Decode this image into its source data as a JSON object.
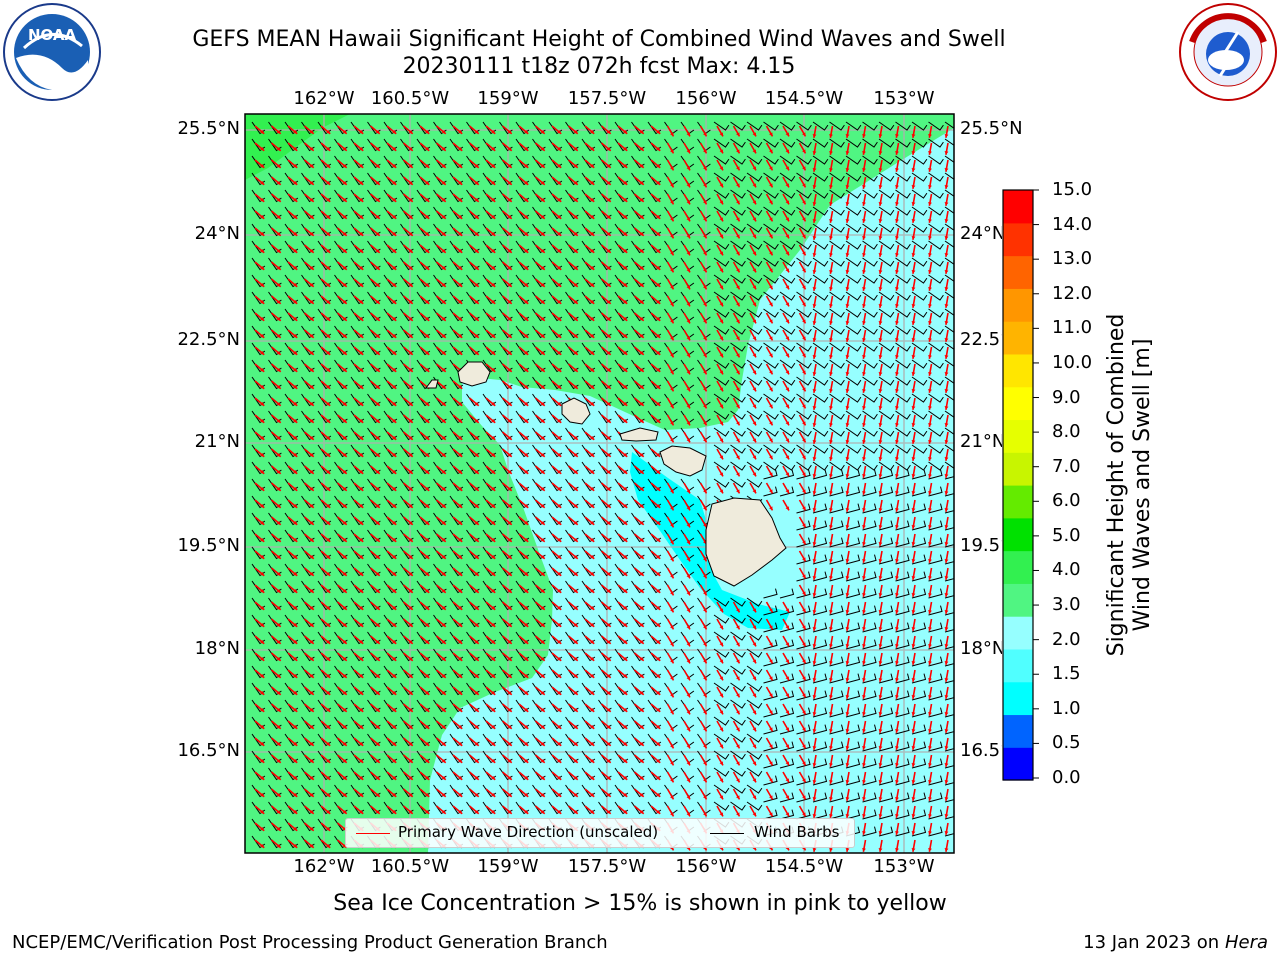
{
  "title_line1": "GEFS MEAN Hawaii Significant Height of Combined Wind Waves and Swell",
  "title_line2": "20230111 t18z 072h fcst   Max: 4.15",
  "lon_ticks": [
    "162°W",
    "160.5°W",
    "159°W",
    "157.5°W",
    "156°W",
    "154.5°W",
    "153°W"
  ],
  "lat_ticks": [
    "25.5°N",
    "24°N",
    "22.5°N",
    "21°N",
    "19.5°N",
    "18°N",
    "16.5°N"
  ],
  "colorbar": {
    "label": "Significant Height of Combined Wind Waves and Swell [m]",
    "label_line1": "Significant Height of Combined",
    "label_line2": "Wind Waves and Swell [m]",
    "ticks": [
      "15.0",
      "14.0",
      "13.0",
      "12.0",
      "11.0",
      "10.0",
      "9.0",
      "8.0",
      "7.0",
      "6.0",
      "5.0",
      "4.0",
      "3.0",
      "2.0",
      "1.5",
      "1.0",
      "0.5",
      "0.0"
    ],
    "colors": [
      "#0000ff",
      "#0064ff",
      "#00ffff",
      "#50ffff",
      "#96ffff",
      "#50f582",
      "#32f050",
      "#00e100",
      "#64eb00",
      "#c8f500",
      "#e6ff00",
      "#ffff00",
      "#ffe600",
      "#ffb400",
      "#ff9600",
      "#ff6400",
      "#ff3200",
      "#ff0000"
    ]
  },
  "legend": {
    "wave_label": "Primary Wave Direction (unscaled)",
    "wave_color": "#ff0000",
    "barb_label": "Wind Barbs",
    "barb_color": "#000000"
  },
  "map": {
    "background_color": "#96ffff",
    "high_sea_color": "#50f582",
    "mid_sea_color": "#32f050",
    "low_sea_color": "#00ffff",
    "land_color": "#efebdc",
    "grid_color": "#b0b0b0"
  },
  "footer_note": "Sea Ice Concentration > 15% is shown in pink to yellow",
  "footer_left": "NCEP/EMC/Verification Post Processing Product Generation Branch",
  "footer_right_date": "13 Jan 2023 on ",
  "footer_right_host": "Hera",
  "logos": {
    "left": "noaa-logo",
    "right": "nws-logo"
  }
}
